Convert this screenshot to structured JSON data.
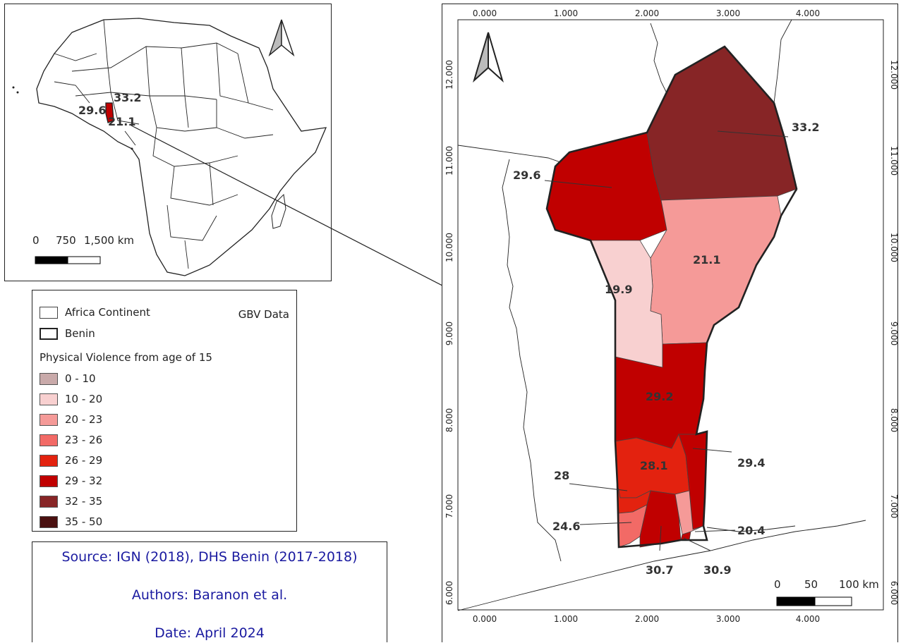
{
  "inset": {
    "labels": [
      "33.2",
      "29.6",
      "21.1"
    ],
    "scale": {
      "zero": "0",
      "mid": "750",
      "end": "1,500 km"
    }
  },
  "legend": {
    "africa": "Africa Continent",
    "gbv": "GBV Data",
    "benin": "Benin",
    "title": "Physical Violence from age of 15",
    "classes": [
      {
        "range": "0 - 10",
        "color": "#c9aaaa"
      },
      {
        "range": "10 - 20",
        "color": "#f8d0d0"
      },
      {
        "range": "20 - 23",
        "color": "#f59a98"
      },
      {
        "range": "23 - 26",
        "color": "#f26a66"
      },
      {
        "range": "26 - 29",
        "color": "#e3220f"
      },
      {
        "range": "29 - 32",
        "color": "#c00000"
      },
      {
        "range": "32 - 35",
        "color": "#872526"
      },
      {
        "range": "35 - 50",
        "color": "#4a1010"
      }
    ]
  },
  "source": {
    "line1": "Source: IGN (2018), DHS Benin  (2017-2018)",
    "line2": "Authors: Baranon et al.",
    "line3": "Date: April 2024"
  },
  "main_map": {
    "x_ticks": [
      "0.000",
      "1.000",
      "2.000",
      "3.000",
      "4.000"
    ],
    "y_ticks": [
      "12.000",
      "11.000",
      "10.000",
      "9.000",
      "8.000",
      "7.000",
      "6.000"
    ],
    "regions": [
      {
        "value": "33.2",
        "color": "#872526"
      },
      {
        "value": "29.6",
        "color": "#c00000"
      },
      {
        "value": "21.1",
        "color": "#f59a98"
      },
      {
        "value": "19.9",
        "color": "#f8d0d0"
      },
      {
        "value": "29.2",
        "color": "#c00000"
      },
      {
        "value": "28.1",
        "color": "#e3220f"
      },
      {
        "value": "29.4",
        "color": "#c00000"
      },
      {
        "value": "28",
        "color": "#e3220f"
      },
      {
        "value": "24.6",
        "color": "#f26a66"
      },
      {
        "value": "30.7",
        "color": "#c00000"
      },
      {
        "value": "30.9",
        "color": "#c00000"
      },
      {
        "value": "20.4",
        "color": "#f59a98"
      }
    ],
    "scale": {
      "zero": "0",
      "mid": "50",
      "end": "100 km"
    }
  }
}
